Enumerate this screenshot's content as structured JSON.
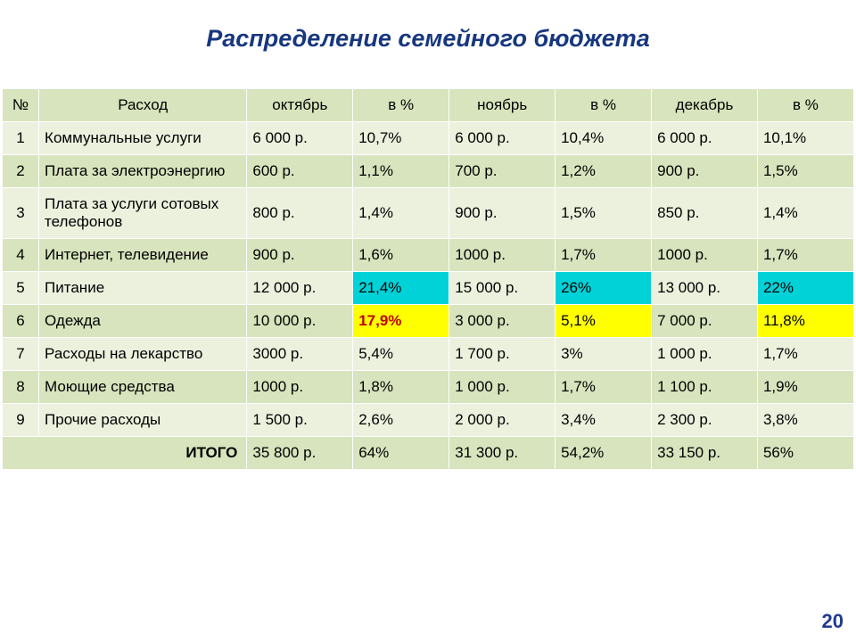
{
  "title": "Распределение семейного бюджета",
  "title_color": "#17377f",
  "page_number": "20",
  "table": {
    "type": "table",
    "header_bg": "#d7e4bd",
    "row_bg_alt": [
      "#ecf1de",
      "#d7e4bd"
    ],
    "total_bg": "#d7e4bd",
    "border_color": "#ffffff",
    "highlight_cyan": "#00d2d8",
    "highlight_yellow": "#ffff00",
    "highlight_text_red": "#c00000",
    "col_widths": [
      "38px",
      "216px",
      "110px",
      "100px",
      "110px",
      "100px",
      "110px",
      "100px"
    ],
    "columns": [
      "№",
      "Расход",
      "октябрь",
      "в %",
      "ноябрь",
      "в %",
      "декабрь",
      "в %"
    ],
    "rows": [
      {
        "n": "1",
        "name": "Коммунальные услуги",
        "oct": "6 000 р.",
        "oct_p": "10,7%",
        "nov": "6 000 р.",
        "nov_p": "10,4%",
        "dec": "6 000 р.",
        "dec_p": "10,1%"
      },
      {
        "n": "2",
        "name": "Плата за электроэнергию",
        "oct": "600 р.",
        "oct_p": "1,1%",
        "nov": "700 р.",
        "nov_p": "1,2%",
        "dec": "900 р.",
        "dec_p": "1,5%"
      },
      {
        "n": "3",
        "name": "Плата за услуги сотовых телефонов",
        "oct": "800 р.",
        "oct_p": "1,4%",
        "nov": "900 р.",
        "nov_p": "1,5%",
        "dec": "850 р.",
        "dec_p": "1,4%"
      },
      {
        "n": "4",
        "name": "Интернет, телевидение",
        "oct": "900 р.",
        "oct_p": "1,6%",
        "nov": "1000 р.",
        "nov_p": "1,7%",
        "dec": "1000 р.",
        "dec_p": "1,7%"
      },
      {
        "n": "5",
        "name": "Питание",
        "oct": "12 000 р.",
        "oct_p": "21,4%",
        "nov": "15 000 р.",
        "nov_p": "26%",
        "dec": "13 000 р.",
        "dec_p": "22%",
        "hl": {
          "oct_p": "cyan",
          "nov_p": "cyan",
          "dec_p": "cyan"
        }
      },
      {
        "n": "6",
        "name": "Одежда",
        "oct": "10 000 р.",
        "oct_p": "17,9%",
        "nov": "3 000 р.",
        "nov_p": "5,1%",
        "dec": "7 000 р.",
        "dec_p": "11,8%",
        "hl": {
          "oct_p": "yellow-red",
          "nov_p": "yellow",
          "dec_p": "yellow"
        }
      },
      {
        "n": "7",
        "name": "Расходы на лекарство",
        "oct": "3000 р.",
        "oct_p": "5,4%",
        "nov": "1 700 р.",
        "nov_p": "3%",
        "dec": "1 000 р.",
        "dec_p": "1,7%"
      },
      {
        "n": "8",
        "name": "Моющие средства",
        "oct": "1000 р.",
        "oct_p": "1,8%",
        "nov": "1 000 р.",
        "nov_p": "1,7%",
        "dec": "1 100 р.",
        "dec_p": "1,9%"
      },
      {
        "n": "9",
        "name": "Прочие расходы",
        "oct": "1 500 р.",
        "oct_p": "2,6%",
        "nov": "2 000 р.",
        "nov_p": "3,4%",
        "dec": "2 300 р.",
        "dec_p": "3,8%"
      }
    ],
    "total": {
      "label": "ИТОГО",
      "oct": "35 800 р.",
      "oct_p": "64%",
      "nov": "31 300 р.",
      "nov_p": "54,2%",
      "dec": "33 150 р.",
      "dec_p": "56%"
    }
  }
}
